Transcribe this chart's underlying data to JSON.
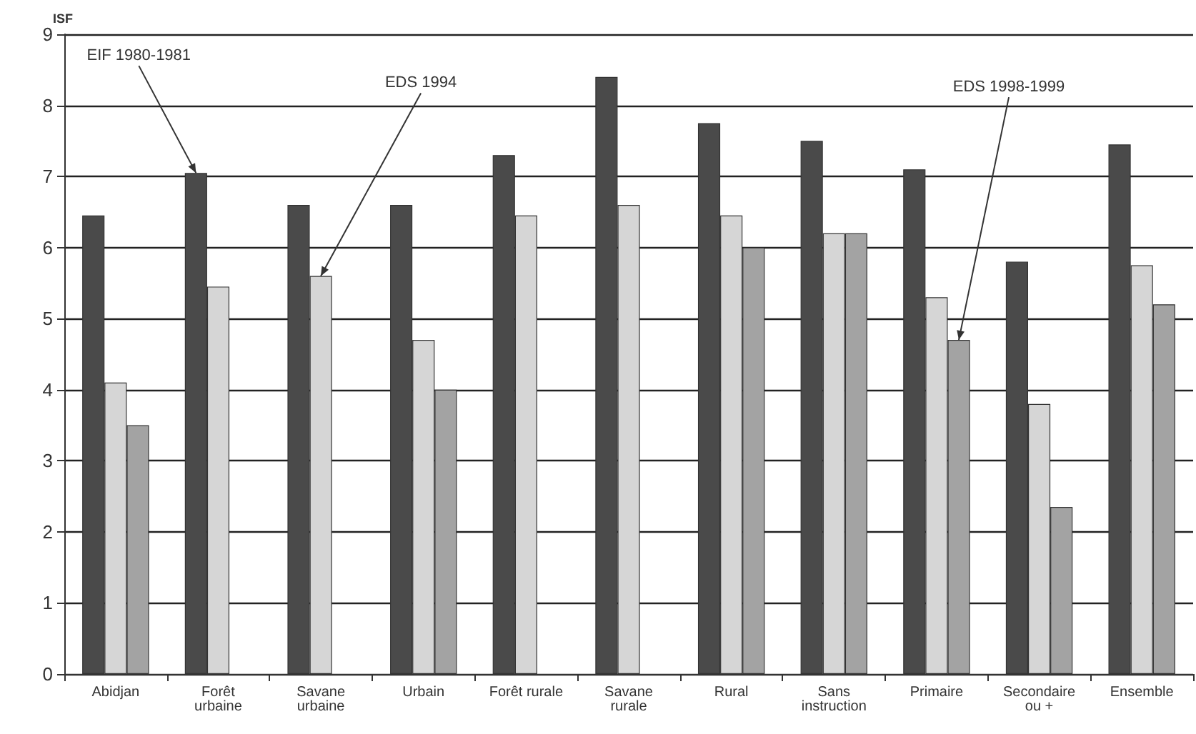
{
  "chart_data": {
    "type": "bar",
    "ylabel": "ISF",
    "categories": [
      "Abidjan",
      "Forêt\nurbaine",
      "Savane\nurbaine",
      "Urbain",
      "Forêt rurale",
      "Savane\nrurale",
      "Rural",
      "Sans\ninstruction",
      "Primaire",
      "Secondaire\nou +",
      "Ensemble"
    ],
    "series": [
      {
        "name": "EIF 1980-1981",
        "color": "#4a4a4a",
        "values": [
          6.45,
          7.05,
          6.6,
          6.6,
          7.3,
          8.4,
          7.75,
          7.5,
          7.1,
          5.8,
          7.45
        ]
      },
      {
        "name": "EDS 1994",
        "color": "#d6d6d6",
        "values": [
          4.1,
          5.45,
          5.6,
          4.7,
          6.45,
          6.6,
          6.45,
          6.2,
          5.3,
          3.8,
          5.75
        ]
      },
      {
        "name": "EDS 1998-1999",
        "color": "#a3a3a3",
        "values": [
          3.5,
          null,
          null,
          4.0,
          null,
          null,
          6.0,
          6.2,
          4.7,
          2.35,
          5.2
        ]
      }
    ],
    "ylim": [
      0,
      9
    ],
    "yticks": [
      0,
      1,
      2,
      3,
      4,
      5,
      6,
      7,
      8,
      9
    ],
    "grid": "y"
  }
}
